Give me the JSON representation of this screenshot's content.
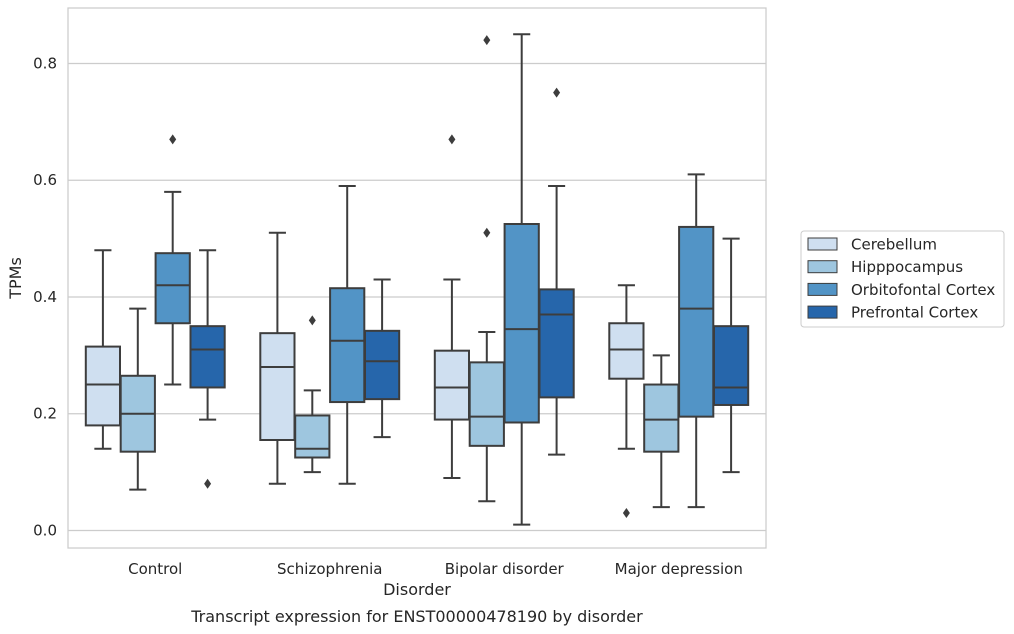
{
  "chart_data": {
    "type": "boxplot",
    "xlabel": "Disorder",
    "ylabel": "TPMs",
    "caption": "Transcript expression for ENST00000478190 by disorder",
    "categories": [
      "Control",
      "Schizophrenia",
      "Bipolar disorder",
      "Major depression"
    ],
    "ylim": [
      -0.03,
      0.895
    ],
    "yticks": [
      "0.0",
      "0.2",
      "0.4",
      "0.6",
      "0.8"
    ],
    "grid": true,
    "legend_position": "right",
    "series": [
      {
        "name": "Cerebellum",
        "color": "#cfdff0",
        "boxes": [
          {
            "whislo": 0.14,
            "q1": 0.18,
            "med": 0.25,
            "q3": 0.315,
            "whishi": 0.48,
            "fliers": []
          },
          {
            "whislo": 0.08,
            "q1": 0.155,
            "med": 0.28,
            "q3": 0.338,
            "whishi": 0.51,
            "fliers": []
          },
          {
            "whislo": 0.09,
            "q1": 0.19,
            "med": 0.245,
            "q3": 0.308,
            "whishi": 0.43,
            "fliers": [
              0.67
            ]
          },
          {
            "whislo": 0.14,
            "q1": 0.26,
            "med": 0.31,
            "q3": 0.355,
            "whishi": 0.42,
            "fliers": [
              0.03
            ]
          }
        ]
      },
      {
        "name": "Hipppocampus",
        "color": "#9ec6df",
        "boxes": [
          {
            "whislo": 0.07,
            "q1": 0.135,
            "med": 0.2,
            "q3": 0.265,
            "whishi": 0.38,
            "fliers": []
          },
          {
            "whislo": 0.1,
            "q1": 0.125,
            "med": 0.14,
            "q3": 0.197,
            "whishi": 0.24,
            "fliers": [
              0.36
            ]
          },
          {
            "whislo": 0.05,
            "q1": 0.145,
            "med": 0.195,
            "q3": 0.288,
            "whishi": 0.34,
            "fliers": [
              0.51,
              0.84
            ]
          },
          {
            "whislo": 0.04,
            "q1": 0.135,
            "med": 0.19,
            "q3": 0.25,
            "whishi": 0.3,
            "fliers": []
          }
        ]
      },
      {
        "name": "Orbitofontal Cortex",
        "color": "#5294c6",
        "boxes": [
          {
            "whislo": 0.25,
            "q1": 0.355,
            "med": 0.42,
            "q3": 0.475,
            "whishi": 0.58,
            "fliers": [
              0.67
            ]
          },
          {
            "whislo": 0.08,
            "q1": 0.22,
            "med": 0.325,
            "q3": 0.415,
            "whishi": 0.59,
            "fliers": []
          },
          {
            "whislo": 0.01,
            "q1": 0.185,
            "med": 0.345,
            "q3": 0.525,
            "whishi": 0.85,
            "fliers": []
          },
          {
            "whislo": 0.04,
            "q1": 0.195,
            "med": 0.38,
            "q3": 0.52,
            "whishi": 0.61,
            "fliers": []
          }
        ]
      },
      {
        "name": "Prefrontal Cortex",
        "color": "#2666ab",
        "boxes": [
          {
            "whislo": 0.19,
            "q1": 0.245,
            "med": 0.31,
            "q3": 0.35,
            "whishi": 0.48,
            "fliers": [
              0.08
            ]
          },
          {
            "whislo": 0.16,
            "q1": 0.225,
            "med": 0.29,
            "q3": 0.342,
            "whishi": 0.43,
            "fliers": []
          },
          {
            "whislo": 0.13,
            "q1": 0.228,
            "med": 0.37,
            "q3": 0.413,
            "whishi": 0.59,
            "fliers": [
              0.75
            ]
          },
          {
            "whislo": 0.1,
            "q1": 0.215,
            "med": 0.245,
            "q3": 0.35,
            "whishi": 0.5,
            "fliers": []
          }
        ]
      }
    ]
  }
}
